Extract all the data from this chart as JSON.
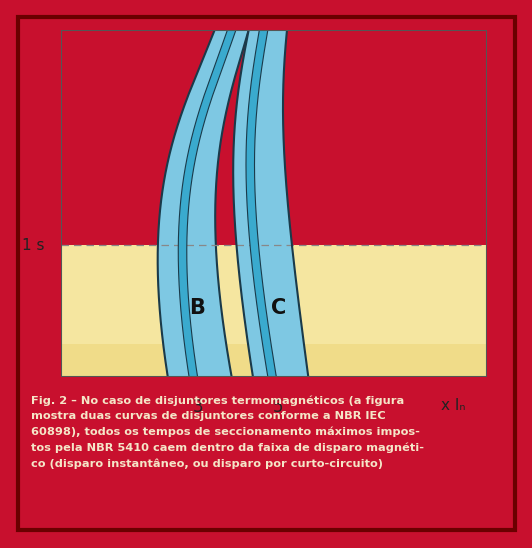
{
  "fig_bg": "#c8102e",
  "chart_bg": "#ffffff",
  "yellow_band_color": "#f5e6a0",
  "yellow_band_color2": "#e8cc60",
  "blue_fill": "#7ec8e3",
  "blue_fill_dark": "#3aaace",
  "blue_border": "#1a3a4a",
  "label_1s": "1 s",
  "label_x": "x Iₙ",
  "label_3": "3",
  "label_5": "5",
  "label_B": "B",
  "label_C": "C",
  "caption": "Fig. 2 – No caso de disjuntores termomagnéticos (a figura\nmostra duas curvas de disjuntores conforme a NBR IEC\n60898), todos os tempos de seccionamento máximos impos-\ntos pela NBR 5410 caem dentro da faixa de disparo magnéti-\nco (disparo instantâneo, ou disparo por curto-circuito)",
  "caption_bg": "#9b1a1a",
  "caption_color": "#f5e6c8"
}
